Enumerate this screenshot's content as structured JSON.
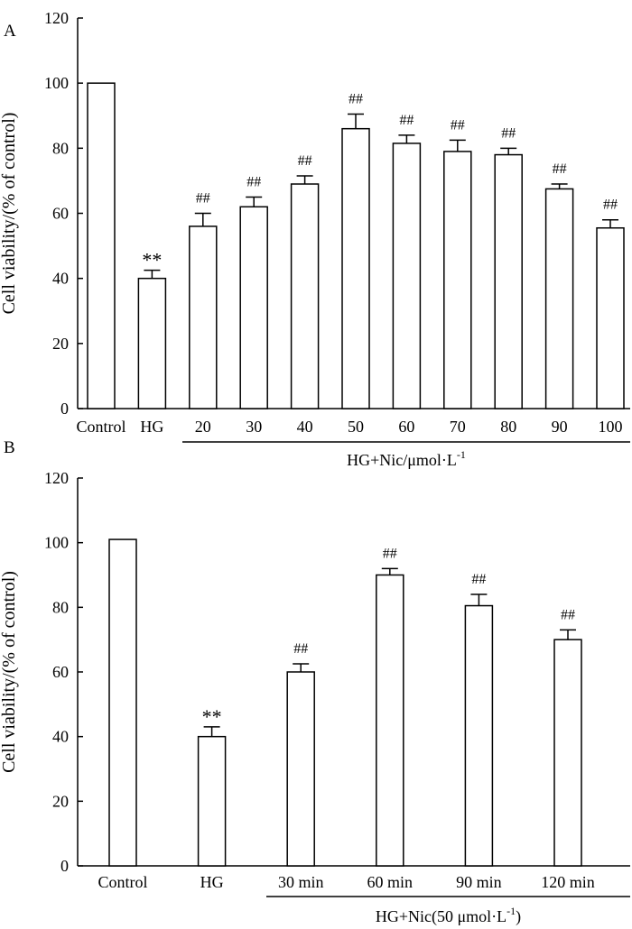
{
  "chart_data": [
    {
      "panel_label": "A",
      "type": "bar",
      "ylabel": "Cell viability/(% of control)",
      "ylim": [
        0,
        120
      ],
      "yticks": [
        "0",
        "20",
        "40",
        "60",
        "80",
        "100",
        "120"
      ],
      "categories": [
        "Control",
        "HG",
        "20",
        "30",
        "40",
        "50",
        "60",
        "70",
        "80",
        "90",
        "100"
      ],
      "values": [
        100,
        40,
        56,
        62,
        69,
        86,
        81.5,
        79,
        78,
        67.5,
        55.5
      ],
      "errors": [
        0,
        2.5,
        4,
        3,
        2.5,
        4.5,
        2.5,
        3.5,
        2,
        1.5,
        2.5
      ],
      "annotations": [
        "",
        "**",
        "##",
        "##",
        "##",
        "##",
        "##",
        "##",
        "##",
        "##",
        "##"
      ],
      "group_label": {
        "text": "HG+Nic/μmol·L",
        "superscript": "-1",
        "from_category": 2,
        "to_category": 10
      }
    },
    {
      "panel_label": "B",
      "type": "bar",
      "ylabel": "Cell viability/(% of control)",
      "ylim": [
        0,
        120
      ],
      "yticks": [
        "0",
        "20",
        "40",
        "60",
        "80",
        "100",
        "120"
      ],
      "categories": [
        "Control",
        "HG",
        "30 min",
        "60 min",
        "90 min",
        "120 min"
      ],
      "values": [
        101,
        40,
        60,
        90,
        80.5,
        70
      ],
      "errors": [
        0,
        3,
        2.5,
        2,
        3.5,
        3
      ],
      "annotations": [
        "",
        "**",
        "##",
        "##",
        "##",
        "##"
      ],
      "group_label": {
        "text": "HG+Nic(50 μmol·L",
        "superscript": "-1",
        "suffix": ")",
        "from_category": 2,
        "to_category": 5
      }
    }
  ]
}
